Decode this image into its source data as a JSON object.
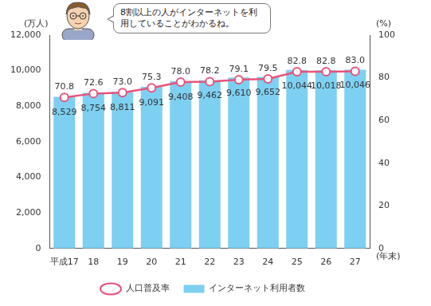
{
  "chart_data": {
    "type": "bar",
    "annotation": "8割以上の人がインターネットを利用していることがわかるね。",
    "y_label": "(万人)",
    "y2_label": "(%)",
    "x_label": "(年末)",
    "categories": [
      "平成17",
      "18",
      "19",
      "20",
      "21",
      "22",
      "23",
      "24",
      "25",
      "26",
      "27"
    ],
    "series": [
      {
        "name": "インターネット利用者数",
        "type": "bar",
        "color": "#7dd0f2",
        "values": [
          8529,
          8754,
          8811,
          9091,
          9408,
          9462,
          9610,
          9652,
          10044,
          10018,
          10046
        ],
        "value_labels": [
          "8,529",
          "8,754",
          "8,811",
          "9,091",
          "9,408",
          "9,462",
          "9,610",
          "9,652",
          "10,044",
          "10,018",
          "10,046"
        ]
      },
      {
        "name": "人口普及率",
        "type": "line",
        "color": "#e8537a",
        "marker": "circle",
        "axis": "y2",
        "values": [
          70.8,
          72.6,
          73,
          75.3,
          78,
          78.2,
          79.1,
          79.5,
          82.8,
          82.8,
          83
        ],
        "value_labels": [
          "70.8",
          "72.6",
          "73.0",
          "75.3",
          "78.0",
          "78.2",
          "79.1",
          "79.5",
          "82.8",
          "82.8",
          "83.0"
        ]
      }
    ],
    "ylim": [
      0,
      12000
    ],
    "yticks": [
      0,
      {
        "value": 2000,
        "label": "2,000"
      },
      {
        "value": 4000,
        "label": "4,000"
      },
      {
        "value": 6000,
        "label": "6,000"
      },
      {
        "value": 8000,
        "label": "8,000"
      },
      {
        "value": 10000,
        "label": "10,000"
      },
      {
        "value": 12000,
        "label": "12,000"
      }
    ],
    "y2lim": [
      0,
      100
    ],
    "y2ticks": [
      0,
      20,
      40,
      60,
      80,
      100
    ],
    "grid": false,
    "legend": "bottom",
    "data_labels": true
  }
}
